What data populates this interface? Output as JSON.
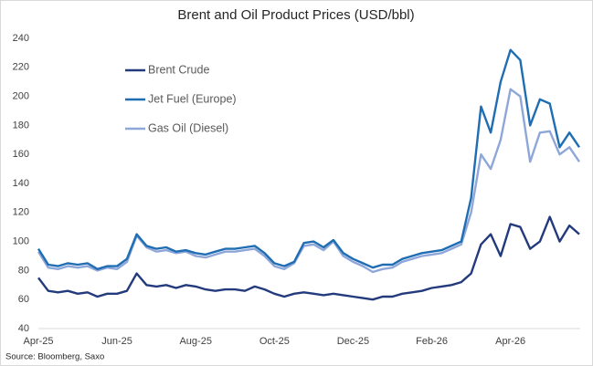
{
  "chart_data": {
    "type": "line",
    "title": "Brent and Oil Product Prices (USD/bbl)",
    "source": "Source: Bloomberg, Saxo",
    "categories": [
      "Apr-25",
      null,
      null,
      null,
      null,
      null,
      null,
      null,
      "Jun-25",
      null,
      null,
      null,
      null,
      null,
      null,
      null,
      "Aug-25",
      null,
      null,
      null,
      null,
      null,
      null,
      null,
      "Oct-25",
      null,
      null,
      null,
      null,
      null,
      null,
      null,
      "Dec-25",
      null,
      null,
      null,
      null,
      null,
      null,
      null,
      "Feb-26",
      null,
      null,
      null,
      null,
      null,
      null,
      null,
      "Apr-26",
      null,
      null,
      null,
      null,
      null,
      null,
      null
    ],
    "series": [
      {
        "name": "Brent Crude",
        "color": "#233a7c",
        "values": [
          75,
          66,
          65,
          66,
          64,
          65,
          62,
          64,
          64,
          66,
          78,
          70,
          69,
          70,
          68,
          70,
          69,
          67,
          66,
          67,
          67,
          66,
          69,
          67,
          64,
          62,
          64,
          65,
          64,
          63,
          64,
          63,
          62,
          61,
          60,
          62,
          62,
          64,
          65,
          66,
          68,
          69,
          70,
          72,
          78,
          98,
          105,
          90,
          112,
          110,
          95,
          100,
          117,
          100,
          111,
          105
        ]
      },
      {
        "name": "Jet Fuel (Europe)",
        "color": "#1f6db3",
        "values": [
          95,
          84,
          83,
          85,
          84,
          85,
          81,
          83,
          83,
          88,
          105,
          97,
          95,
          96,
          93,
          94,
          92,
          91,
          93,
          95,
          95,
          96,
          97,
          92,
          85,
          83,
          86,
          99,
          100,
          96,
          101,
          92,
          88,
          85,
          82,
          84,
          84,
          88,
          90,
          92,
          93,
          94,
          97,
          100,
          130,
          193,
          175,
          210,
          232,
          225,
          180,
          198,
          195,
          165,
          175,
          165
        ]
      },
      {
        "name": "Gas Oil (Diesel)",
        "color": "#8ea7d8",
        "values": [
          93,
          82,
          81,
          83,
          82,
          83,
          80,
          82,
          81,
          86,
          104,
          96,
          93,
          94,
          92,
          93,
          90,
          89,
          91,
          93,
          93,
          94,
          95,
          90,
          83,
          81,
          85,
          97,
          98,
          94,
          100,
          90,
          86,
          83,
          79,
          81,
          82,
          86,
          88,
          90,
          91,
          92,
          95,
          98,
          120,
          160,
          150,
          170,
          205,
          200,
          155,
          175,
          176,
          160,
          165,
          155
        ]
      }
    ],
    "ylim": [
      40,
      240
    ],
    "yticks": [
      40,
      60,
      80,
      100,
      120,
      140,
      160,
      180,
      200,
      220,
      240
    ],
    "grid": false,
    "legend": "upper left"
  }
}
